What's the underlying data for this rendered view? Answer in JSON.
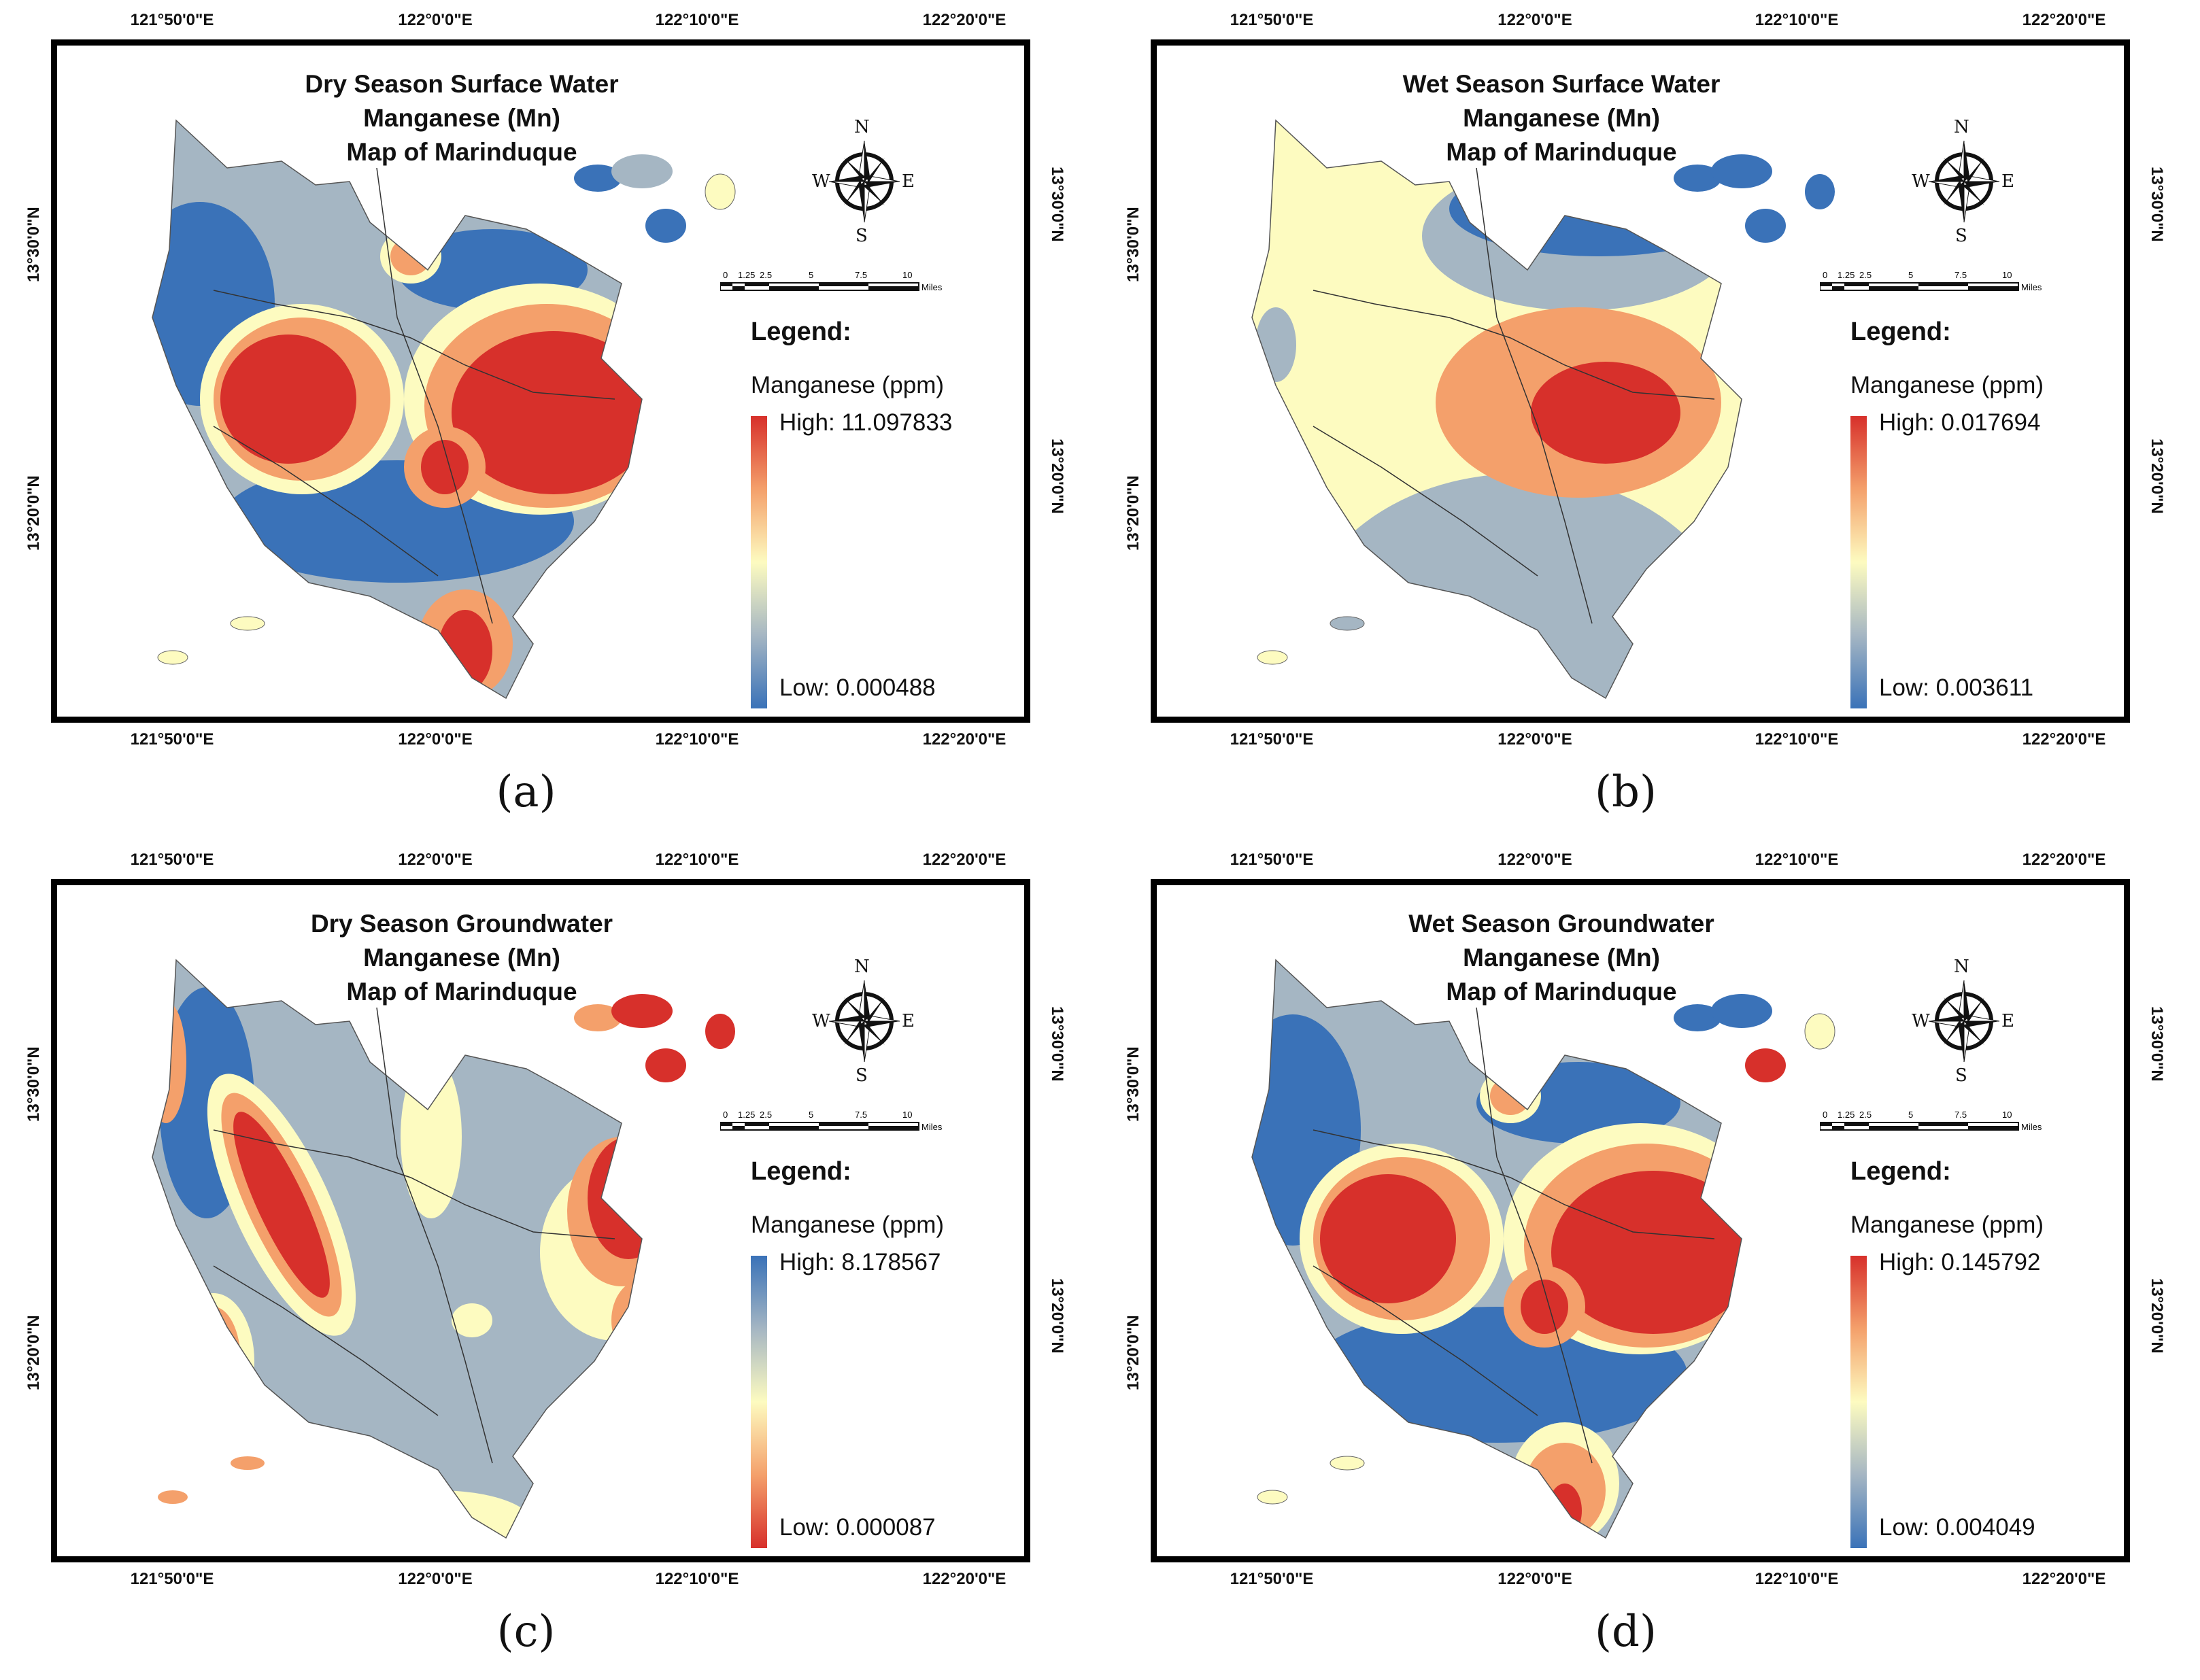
{
  "axis_labels": {
    "longitudes": [
      "121°50'0\"E",
      "122°0'0\"E",
      "122°10'0\"E",
      "122°20'0\"E"
    ],
    "latitudes": [
      "13°30'0\"N",
      "13°20'0\"N"
    ]
  },
  "compass": {
    "n": "N",
    "s": "S",
    "e": "E",
    "w": "W"
  },
  "scale": {
    "ticks": [
      "0",
      "1.25",
      "2.5",
      "5",
      "7.5",
      "10"
    ],
    "unit": "Miles"
  },
  "colors": {
    "high_red": "#d7302b",
    "orange": "#f4a06b",
    "cream": "#fdfbc0",
    "grey_blue": "#a5b6c3",
    "low_blue": "#3a72b8"
  },
  "panels": [
    {
      "id": "a",
      "caption": "(a)",
      "title_line1": "Dry Season Surface Water Manganese (Mn)",
      "title_line2": "Map of Marinduque",
      "legend_title": "Legend:",
      "legend_sub": "Manganese (ppm)",
      "high_label": "High: 11.097833",
      "low_label": "Low: 0.000488",
      "ramp": "red-high"
    },
    {
      "id": "b",
      "caption": "(b)",
      "title_line1": "Wet Season Surface Water Manganese (Mn)",
      "title_line2": "Map of Marinduque",
      "legend_title": "Legend:",
      "legend_sub": "Manganese (ppm)",
      "high_label": "High: 0.017694",
      "low_label": "Low: 0.003611",
      "ramp": "red-high"
    },
    {
      "id": "c",
      "caption": "(c)",
      "title_line1": "Dry Season Groundwater Manganese (Mn)",
      "title_line2": "Map of Marinduque",
      "legend_title": "Legend:",
      "legend_sub": "Manganese (ppm)",
      "high_label": "High: 8.178567",
      "low_label": "Low: 0.000087",
      "ramp": "blue-high"
    },
    {
      "id": "d",
      "caption": "(d)",
      "title_line1": "Wet Season Groundwater Manganese (Mn)",
      "title_line2": "Map of Marinduque",
      "legend_title": "Legend:",
      "legend_sub": "Manganese (ppm)",
      "high_label": "High: 0.145792",
      "low_label": "Low: 0.004049",
      "ramp": "red-high"
    }
  ]
}
